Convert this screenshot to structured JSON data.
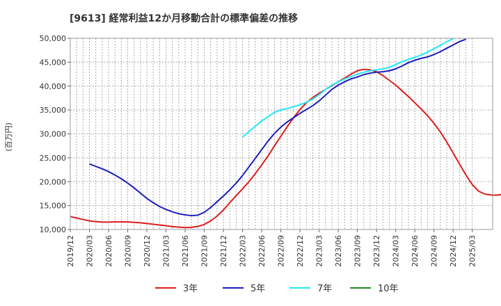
{
  "chart_data": {
    "type": "line",
    "title": "[9613]  経常利益12か月移動合計の標準偏差の推移",
    "ylabel": "(百万円)",
    "xlabel": "",
    "ylim": [
      10000,
      50000
    ],
    "yticks": [
      10000,
      15000,
      20000,
      25000,
      30000,
      35000,
      40000,
      45000,
      50000
    ],
    "ytick_labels": [
      "10,000",
      "15,000",
      "20,000",
      "25,000",
      "30,000",
      "35,000",
      "40,000",
      "45,000",
      "50,000"
    ],
    "x_range": [
      "2019-12",
      "2025-03"
    ],
    "xtick_labels": [
      "2019/12",
      "2020/03",
      "2020/06",
      "2020/09",
      "2020/12",
      "2021/03",
      "2021/06",
      "2021/09",
      "2021/12",
      "2022/03",
      "2022/06",
      "2022/09",
      "2022/12",
      "2023/03",
      "2023/06",
      "2023/09",
      "2023/12",
      "2024/03",
      "2024/06",
      "2024/09",
      "2024/12",
      "2025/03"
    ],
    "grid": true,
    "legend_position": "bottom",
    "series": [
      {
        "name": "3年",
        "color": "#dd1c1c",
        "start": "2019-12",
        "values": [
          12700,
          12400,
          12100,
          11800,
          11650,
          11550,
          11550,
          11600,
          11600,
          11580,
          11500,
          11400,
          11250,
          11100,
          10950,
          10800,
          10600,
          10500,
          10400,
          10450,
          10650,
          11050,
          11800,
          12800,
          14100,
          15600,
          17100,
          18500,
          20000,
          21700,
          23500,
          25400,
          27500,
          29500,
          31500,
          33400,
          35100,
          36500,
          37600,
          38500,
          39300,
          40100,
          40900,
          41700,
          42500,
          43200,
          43500,
          43400,
          43000,
          42200,
          41200,
          40200,
          39000,
          37800,
          36500,
          35200,
          33800,
          32200,
          30400,
          28300,
          26000,
          23700,
          21400,
          19400,
          18000,
          17400,
          17200,
          17200,
          17400
        ]
      },
      {
        "name": "5年",
        "color": "#1c1cbc",
        "start": "2020-03",
        "values": [
          23700,
          23200,
          22700,
          22100,
          21400,
          20600,
          19700,
          18700,
          17600,
          16500,
          15600,
          14800,
          14200,
          13700,
          13300,
          13050,
          12900,
          13000,
          13600,
          14600,
          15800,
          17000,
          18300,
          19700,
          21300,
          23100,
          24900,
          26700,
          28500,
          30100,
          31400,
          32500,
          33400,
          34300,
          35100,
          35900,
          36900,
          38100,
          39300,
          40200,
          40900,
          41500,
          41900,
          42400,
          42700,
          42900,
          43000,
          43200,
          43600,
          44200,
          44900,
          45400,
          45800,
          46100,
          46600,
          47200,
          47900,
          48600,
          49300,
          49800
        ]
      },
      {
        "name": "7年",
        "color": "#22e8f4",
        "start": "2022-03",
        "values": [
          29300,
          30500,
          31600,
          32700,
          33600,
          34500,
          35000,
          35300,
          35700,
          36100,
          36600,
          37300,
          38200,
          39300,
          40200,
          40900,
          41500,
          42000,
          42500,
          42900,
          43200,
          43400,
          43600,
          43900,
          44500,
          45100,
          45600,
          46000,
          46500,
          47100,
          47800,
          48500,
          49300,
          49900
        ]
      },
      {
        "name": "10年",
        "color": "#1f8a1f",
        "start": "2025-03",
        "values": []
      }
    ]
  }
}
